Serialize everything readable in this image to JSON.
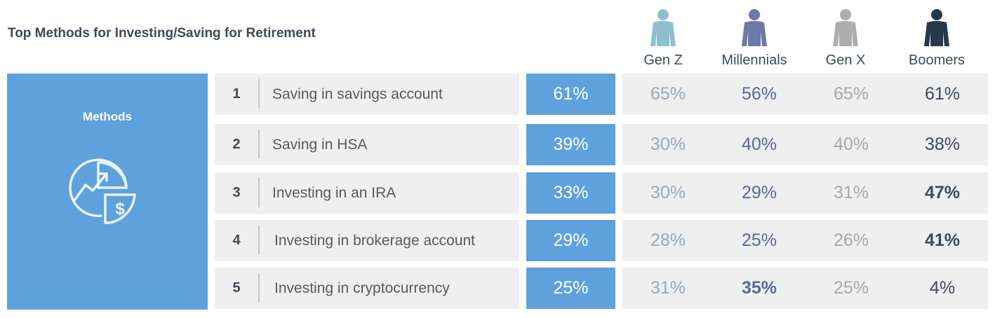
{
  "title": "Top Methods for Investing/Saving for Retirement",
  "methods_label": "Methods",
  "colors": {
    "accent": "#5ea1dc",
    "gen_z": "#8fbfcf",
    "millennials": "#6b7aa6",
    "gen_x": "#aeaeae",
    "boomers": "#26394a"
  },
  "chart_data": {
    "type": "table",
    "title": "Top Methods for Investing/Saving for Retirement",
    "columns": [
      "Gen Z",
      "Millennials",
      "Gen X",
      "Boomers"
    ],
    "rows": [
      {
        "rank": "1",
        "method": "Saving in savings account",
        "overall": "61%",
        "gen_z": "65%",
        "millennials": "56%",
        "gen_x": "65%",
        "boomers": "61%",
        "bold": []
      },
      {
        "rank": "2",
        "method": "Saving in HSA",
        "overall": "39%",
        "gen_z": "30%",
        "millennials": "40%",
        "gen_x": "40%",
        "boomers": "38%",
        "bold": []
      },
      {
        "rank": "3",
        "method": "Investing in an IRA",
        "overall": "33%",
        "gen_z": "30%",
        "millennials": "29%",
        "gen_x": "31%",
        "boomers": "47%",
        "bold": [
          "boomers"
        ]
      },
      {
        "rank": "4",
        "method": "Investing in brokerage account",
        "overall": "29%",
        "gen_z": "28%",
        "millennials": "25%",
        "gen_x": "26%",
        "boomers": "41%",
        "bold": [
          "boomers"
        ]
      },
      {
        "rank": "5",
        "method": "Investing in cryptocurrency",
        "overall": "25%",
        "gen_z": "31%",
        "millennials": "35%",
        "gen_x": "25%",
        "boomers": "4%",
        "bold": [
          "millennials"
        ]
      }
    ]
  }
}
